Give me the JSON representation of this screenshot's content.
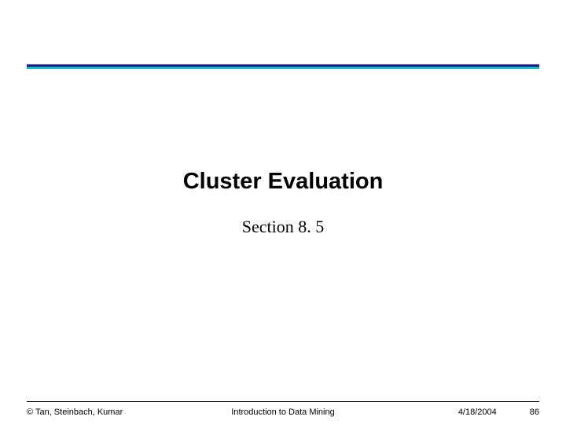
{
  "header": {
    "bar_top_color": "#1a1a8a",
    "bar_bottom_color": "#10c0c0"
  },
  "content": {
    "title": "Cluster Evaluation",
    "subtitle": "Section 8. 5",
    "title_fontsize": "29px",
    "title_weight": "bold",
    "subtitle_fontsize": "22px"
  },
  "footer": {
    "copyright": "© Tan, Steinbach, Kumar",
    "center_text": "Introduction to Data Mining",
    "date": "4/18/2004",
    "page_number": "86"
  },
  "colors": {
    "background": "#ffffff",
    "text": "#000000"
  }
}
